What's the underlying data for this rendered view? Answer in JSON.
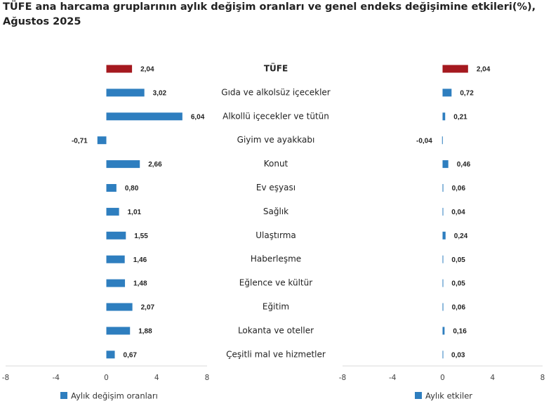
{
  "chart_data": [
    {
      "type": "bar",
      "orientation": "horizontal",
      "title": "TÜFE ana harcama gruplarının aylık değişim oranları ve genel endeks değişimine etkileri(%), Ağustos 2025",
      "categories": [
        "TÜFE",
        "Gıda ve alkolsüz içecekler",
        "Alkollü içecekler ve tütün",
        "Giyim ve ayakkabı",
        "Konut",
        "Ev eşyası",
        "Sağlık",
        "Ulaştırma",
        "Haberleşme",
        "Eğlence ve kültür",
        "Eğitim",
        "Lokanta ve oteller",
        "Çeşitli mal ve hizmetler"
      ],
      "series": [
        {
          "name": "Aylık değişim oranları",
          "color": "#2e7ebf",
          "colors": [
            "#a5191f",
            "#2e7ebf",
            "#2e7ebf",
            "#2e7ebf",
            "#2e7ebf",
            "#2e7ebf",
            "#2e7ebf",
            "#2e7ebf",
            "#2e7ebf",
            "#2e7ebf",
            "#2e7ebf",
            "#2e7ebf",
            "#2e7ebf"
          ],
          "values": [
            2.04,
            3.02,
            6.04,
            -0.71,
            2.66,
            0.8,
            1.01,
            1.55,
            1.46,
            1.48,
            2.07,
            1.88,
            0.67
          ],
          "value_labels": [
            "2,04",
            "3,02",
            "6,04",
            "-0,71",
            "2,66",
            "0,80",
            "1,01",
            "1,55",
            "1,46",
            "1,48",
            "2,07",
            "1,88",
            "0,67"
          ]
        }
      ],
      "xlim": [
        -8,
        8
      ],
      "xticks": [
        -8,
        -4,
        0,
        4,
        8
      ]
    },
    {
      "type": "bar",
      "orientation": "horizontal",
      "series": [
        {
          "name": "Aylık etkiler",
          "color": "#2e7ebf",
          "colors": [
            "#a5191f",
            "#2e7ebf",
            "#2e7ebf",
            "#2e7ebf",
            "#2e7ebf",
            "#2e7ebf",
            "#2e7ebf",
            "#2e7ebf",
            "#2e7ebf",
            "#2e7ebf",
            "#2e7ebf",
            "#2e7ebf",
            "#2e7ebf"
          ],
          "values": [
            2.04,
            0.72,
            0.21,
            -0.04,
            0.46,
            0.06,
            0.04,
            0.24,
            0.05,
            0.05,
            0.06,
            0.16,
            0.03
          ],
          "value_labels": [
            "2,04",
            "0,72",
            "0,21",
            "-0,04",
            "0,46",
            "0,06",
            "0,04",
            "0,24",
            "0,05",
            "0,05",
            "0,06",
            "0,16",
            "0,03"
          ]
        }
      ],
      "xlim": [
        -8,
        8
      ],
      "xticks": [
        -8,
        -4,
        0,
        4,
        8
      ]
    }
  ]
}
